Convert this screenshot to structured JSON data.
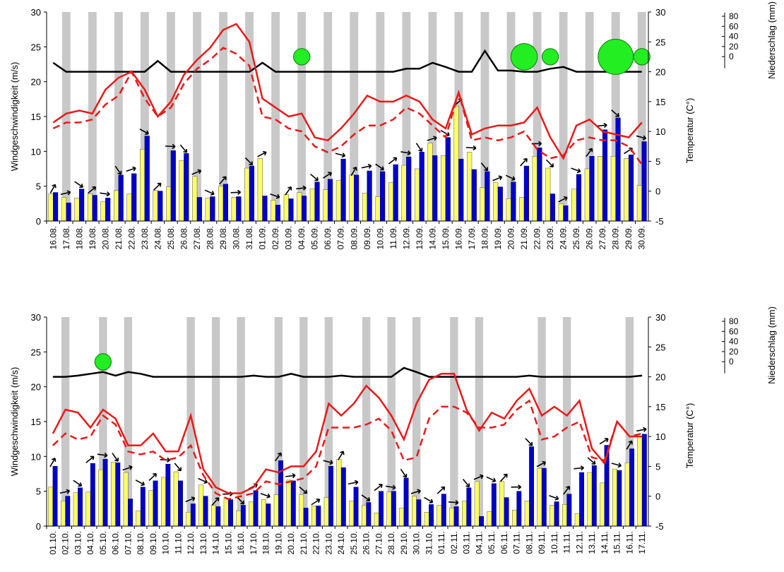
{
  "chart_data": [
    {
      "type": "bar",
      "left_axis_label": "Windgeschwindigkeit (m/s)",
      "right_axis_label": "Temperatur (C°)",
      "precip_axis_label": "Niederschlag (mm)",
      "left_ticks": [
        "0",
        "5",
        "10",
        "15",
        "20",
        "25",
        "30"
      ],
      "right_ticks": [
        "-5",
        "0",
        "5",
        "10",
        "15",
        "20",
        "25",
        "30"
      ],
      "precip_ticks": [
        "0",
        "20",
        "40",
        "60",
        "80"
      ],
      "ylim_left": [
        0,
        30
      ],
      "ylim_right": [
        -5,
        30
      ],
      "categories": [
        "16.08.",
        "17.08.",
        "18.08.",
        "19.08.",
        "20.08.",
        "21.08.",
        "22.08.",
        "23.08.",
        "24.08.",
        "25.08.",
        "26.08.",
        "27.08.",
        "28.08.",
        "29.08.",
        "30.08.",
        "31.08.",
        "01.09.",
        "02.09.",
        "03.09.",
        "04.09.",
        "05.09.",
        "06.09.",
        "07.09.",
        "08.09.",
        "09.09.",
        "10.09.",
        "11.09.",
        "12.09.",
        "13.09.",
        "14.09.",
        "15.09.",
        "16.09.",
        "17.09.",
        "18.09.",
        "19.09.",
        "20.09.",
        "21.09.",
        "22.09.",
        "23.09.",
        "24.09.",
        "25.09.",
        "26.09.",
        "27.09.",
        "28.09.",
        "29.09.",
        "30.09."
      ],
      "grey_band_days": [
        1,
        3,
        5,
        7,
        9,
        11,
        13,
        15,
        17,
        19,
        21,
        23,
        25,
        27,
        29,
        31,
        33,
        35,
        37,
        39,
        41,
        43,
        45
      ],
      "series": [
        {
          "name": "",
          "color": "#ffff66",
          "values": [
            3.9,
            3.4,
            3.3,
            3.9,
            2.8,
            4.4,
            3.9,
            10.3,
            4.4,
            4.9,
            8.7,
            6.4,
            3.3,
            5.0,
            3.4,
            7.6,
            9.0,
            3.0,
            3.8,
            4.1,
            4.6,
            4.5,
            5.8,
            6.6,
            4.0,
            3.5,
            5.5,
            8.0,
            7.5,
            11.2,
            9.4,
            16.5,
            9.9,
            4.8,
            5.5,
            3.2,
            3.4,
            9.3,
            7.6,
            2.5,
            4.6,
            7.5,
            9.3,
            9.3,
            9.0,
            5.1
          ]
        },
        {
          "name": "",
          "color": "#0000cc",
          "values": [
            4.1,
            2.6,
            4.6,
            3.7,
            3.3,
            6.6,
            6.8,
            12.2,
            4.3,
            10.1,
            9.7,
            3.4,
            3.5,
            5.3,
            3.5,
            7.9,
            3.6,
            2.3,
            3.2,
            3.6,
            5.6,
            6.0,
            8.9,
            6.6,
            7.2,
            7.1,
            8.1,
            9.2,
            9.9,
            9.4,
            12.0,
            8.9,
            7.4,
            7.1,
            4.9,
            5.6,
            7.9,
            10.5,
            3.9,
            2.2,
            6.7,
            9.3,
            13.1,
            14.8,
            9.5,
            11.4
          ]
        },
        {
          "name": "",
          "color": "#e81a1a",
          "axis": "right",
          "style": "solid",
          "values": [
            11.5,
            13.0,
            13.5,
            13.0,
            17.0,
            19.0,
            20.0,
            17.0,
            12.5,
            15.0,
            19.5,
            22.0,
            24.0,
            27.0,
            28.0,
            25.0,
            15.5,
            14.0,
            12.5,
            13.0,
            9.0,
            8.5,
            10.5,
            13.0,
            16.0,
            15.0,
            15.0,
            16.0,
            15.0,
            12.0,
            10.5,
            16.5,
            9.5,
            10.5,
            11.0,
            11.0,
            11.5,
            14.0,
            9.0,
            5.5,
            11.0,
            12.0,
            10.0,
            9.5,
            9.0,
            11.5
          ]
        },
        {
          "name": "",
          "color": "#e81a1a",
          "axis": "right",
          "style": "dashed",
          "values": [
            10.5,
            11.5,
            11.5,
            12.0,
            14.5,
            16.0,
            20.0,
            15.5,
            12.5,
            14.0,
            18.0,
            20.5,
            22.0,
            24.0,
            23.0,
            21.0,
            12.5,
            12.0,
            10.5,
            10.0,
            7.5,
            6.5,
            7.5,
            9.5,
            11.0,
            11.0,
            12.0,
            14.0,
            13.0,
            11.0,
            9.0,
            16.5,
            8.5,
            9.0,
            8.5,
            9.0,
            10.0,
            7.0,
            5.5,
            6.0,
            8.5,
            9.0,
            8.5,
            8.5,
            7.5,
            4.5
          ]
        },
        {
          "name": "",
          "color": "#000000",
          "axis": "right",
          "values": [
            21.5,
            20.0,
            20.0,
            20.0,
            20.0,
            20.0,
            20.0,
            20.0,
            21.8,
            20.0,
            20.0,
            20.0,
            20.0,
            20.0,
            20.0,
            20.0,
            21.5,
            20.0,
            20.0,
            20.0,
            20.0,
            20.0,
            20.0,
            20.0,
            20.0,
            20.0,
            20.0,
            20.5,
            20.5,
            21.5,
            20.8,
            20.0,
            20.0,
            23.5,
            20.2,
            20.2,
            20.0,
            20.0,
            20.5,
            20.8,
            20.0,
            20.0,
            20.0,
            20.0,
            20.0,
            20.0
          ]
        }
      ],
      "precip_bubbles": [
        {
          "day": 19,
          "value": 8
        },
        {
          "day": 36,
          "value": 30
        },
        {
          "day": 38,
          "value": 8
        },
        {
          "day": 43,
          "value": 60
        },
        {
          "day": 45,
          "value": 8
        }
      ]
    },
    {
      "type": "bar",
      "left_axis_label": "Windgeschwindigkeit (m/s)",
      "right_axis_label": "Temperatur (C°)",
      "precip_axis_label": "Niederschlag (mm)",
      "left_ticks": [
        "0",
        "5",
        "10",
        "15",
        "20",
        "25",
        "30"
      ],
      "right_ticks": [
        "-5",
        "0",
        "5",
        "10",
        "15",
        "20",
        "25",
        "30"
      ],
      "precip_ticks": [
        "0",
        "20",
        "40",
        "60",
        "80"
      ],
      "ylim_left": [
        0,
        30
      ],
      "ylim_right": [
        -5,
        30
      ],
      "categories": [
        "01.10.",
        "02.10.",
        "03.10.",
        "04.10.",
        "05.10.",
        "06.10.",
        "07.10.",
        "08.10.",
        "09.10.",
        "10.10.",
        "11.10.",
        "12.10.",
        "13.10.",
        "14.10.",
        "15.10.",
        "16.10.",
        "17.10.",
        "18.10.",
        "19.10.",
        "20.10.",
        "21.10.",
        "22.10.",
        "23.10.",
        "24.10.",
        "25.10.",
        "26.10.",
        "27.10.",
        "28.10.",
        "29.10.",
        "30.10.",
        "31.10.",
        "01.11.",
        "02.11.",
        "03.11.",
        "04.11.",
        "05.11.",
        "06.11.",
        "07.11.",
        "08.11.",
        "09.11.",
        "10.11.",
        "11.11.",
        "12.11.",
        "13.11.",
        "14.11.",
        "15.11.",
        "16.11.",
        "17.11."
      ],
      "grey_band_days": [
        1,
        4,
        6,
        11,
        13,
        15,
        18,
        20,
        22,
        25,
        27,
        29,
        32,
        34,
        39,
        41,
        46
      ],
      "series": [
        {
          "name": "",
          "color": "#ffff66",
          "values": [
            5.6,
            3.6,
            4.8,
            4.9,
            8.1,
            9.2,
            7.7,
            2.2,
            5.1,
            7.0,
            7.8,
            2.0,
            5.9,
            3.0,
            4.0,
            2.2,
            3.5,
            3.8,
            4.5,
            6.6,
            4.5,
            2.9,
            4.1,
            9.6,
            3.6,
            3.0,
            1.9,
            4.9,
            2.6,
            4.3,
            2.0,
            3.0,
            2.6,
            3.6,
            6.4,
            2.1,
            6.4,
            2.3,
            3.6,
            8.3,
            3.0,
            3.1,
            1.8,
            7.7,
            6.2,
            8.2,
            9.1,
            12.9
          ]
        },
        {
          "name": "",
          "color": "#0000cc",
          "values": [
            8.6,
            4.3,
            5.5,
            9.0,
            9.6,
            9.1,
            3.9,
            5.6,
            6.5,
            8.9,
            6.5,
            3.2,
            4.3,
            2.8,
            3.8,
            3.0,
            5.1,
            3.2,
            9.4,
            6.5,
            2.6,
            2.9,
            8.6,
            8.4,
            5.6,
            3.4,
            5.0,
            5.0,
            6.9,
            3.8,
            3.1,
            4.6,
            2.8,
            5.5,
            1.4,
            6.1,
            4.1,
            5.0,
            11.4,
            8.3,
            3.5,
            4.6,
            7.7,
            8.7,
            11.6,
            8.0,
            11.1,
            13.2
          ]
        },
        {
          "name": "",
          "color": "#e81a1a",
          "axis": "right",
          "style": "solid",
          "values": [
            10.5,
            14.5,
            14.0,
            11.5,
            14.5,
            13.0,
            8.5,
            8.5,
            10.5,
            7.5,
            7.5,
            13.5,
            4.5,
            1.5,
            0.5,
            0.5,
            1.5,
            4.5,
            4.0,
            5.0,
            5.0,
            7.5,
            15.5,
            13.5,
            15.5,
            18.5,
            16.5,
            13.5,
            9.5,
            15.5,
            19.5,
            20.5,
            20.5,
            14.5,
            11.0,
            14.0,
            13.0,
            16.0,
            18.0,
            13.5,
            15.0,
            13.5,
            16.0,
            8.0,
            5.5,
            12.5,
            10.0,
            10.0
          ]
        },
        {
          "name": "",
          "color": "#e81a1a",
          "axis": "right",
          "style": "dashed",
          "values": [
            8.5,
            10.5,
            9.5,
            10.0,
            13.5,
            12.0,
            7.5,
            7.0,
            7.5,
            6.0,
            6.5,
            8.5,
            3.5,
            0.5,
            -0.5,
            0.0,
            0.5,
            2.5,
            2.0,
            2.5,
            3.0,
            5.0,
            11.5,
            11.5,
            11.5,
            12.0,
            13.0,
            11.0,
            6.0,
            6.5,
            13.0,
            15.0,
            15.0,
            14.0,
            11.5,
            11.5,
            12.0,
            14.5,
            16.0,
            9.5,
            10.0,
            11.5,
            12.5,
            6.5,
            6.0,
            12.5,
            10.0,
            10.5
          ]
        },
        {
          "name": "",
          "color": "#000000",
          "axis": "right",
          "values": [
            20.0,
            20.0,
            20.2,
            20.5,
            20.8,
            20.2,
            20.8,
            20.5,
            20.0,
            20.0,
            20.0,
            20.0,
            20.0,
            20.0,
            20.0,
            20.0,
            20.2,
            20.0,
            20.0,
            20.5,
            20.0,
            20.0,
            20.0,
            20.2,
            20.0,
            20.0,
            20.0,
            20.0,
            21.5,
            20.8,
            20.0,
            20.0,
            20.0,
            20.0,
            20.0,
            20.0,
            20.0,
            20.0,
            20.2,
            20.0,
            20.0,
            20.0,
            20.0,
            20.0,
            20.0,
            20.0,
            20.0,
            20.2
          ]
        }
      ],
      "precip_bubbles": [
        {
          "day": 4,
          "value": 8
        }
      ]
    }
  ]
}
